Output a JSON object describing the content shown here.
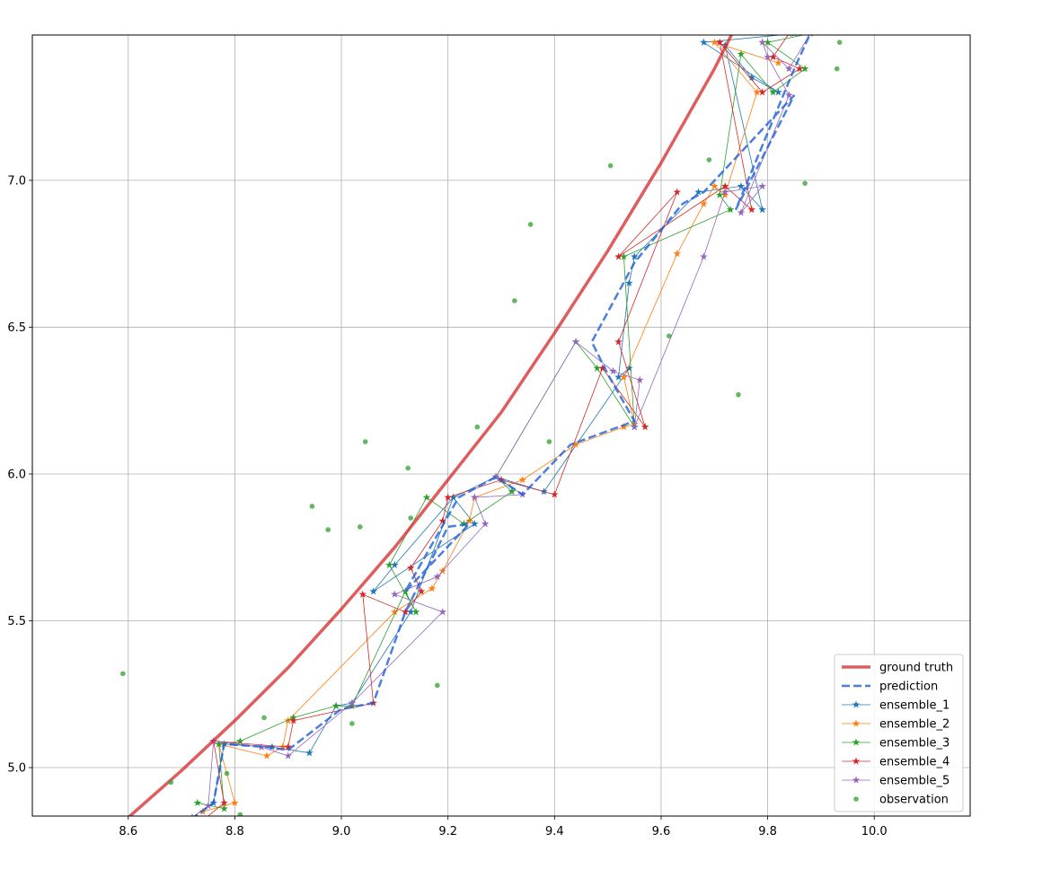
{
  "chart_data": {
    "type": "line",
    "title": "",
    "xlabel": "",
    "ylabel": "",
    "xlim": [
      8.42,
      10.18
    ],
    "ylim": [
      4.835,
      7.495
    ],
    "xticks": [
      8.6,
      8.8,
      9.0,
      9.2,
      9.4,
      9.6,
      9.8,
      10.0
    ],
    "xtick_labels": [
      "8.6",
      "8.8",
      "9.0",
      "9.2",
      "9.4",
      "9.6",
      "9.8",
      "10.0"
    ],
    "yticks": [
      5.0,
      5.5,
      6.0,
      6.5,
      7.0
    ],
    "ytick_labels": [
      "5.0",
      "5.5",
      "6.0",
      "6.5",
      "7.0"
    ],
    "grid": true,
    "legend_position": "lower-right",
    "colors": {
      "ground_truth": "#d62728",
      "prediction": "#1f5fd6",
      "ensemble_1": "#1f77b4",
      "ensemble_2": "#ff7f0e",
      "ensemble_3": "#2ca02c",
      "ensemble_4": "#d62728",
      "ensemble_5": "#9467bd",
      "observation": "#2ca02c"
    },
    "legend": [
      "ground truth",
      "prediction",
      "ensemble_1",
      "ensemble_2",
      "ensemble_3",
      "ensemble_4",
      "ensemble_5",
      "observation"
    ],
    "ground_truth": {
      "name": "ground truth",
      "x": [
        8.52,
        8.6,
        8.7,
        8.8,
        8.9,
        9.0,
        9.1,
        9.2,
        9.3,
        9.4,
        9.5,
        9.6,
        9.7,
        9.75
      ],
      "y": [
        4.7,
        4.83,
        4.99,
        5.16,
        5.34,
        5.54,
        5.75,
        5.98,
        6.21,
        6.48,
        6.76,
        7.06,
        7.38,
        7.56
      ]
    },
    "prediction": {
      "name": "prediction",
      "x": [
        8.7,
        8.76,
        8.78,
        8.86,
        8.9,
        9.0,
        9.06,
        9.12,
        9.2,
        9.24,
        9.12,
        9.22,
        9.29,
        9.34,
        9.43,
        9.55,
        9.5,
        9.47,
        9.55,
        9.64,
        9.68,
        9.85,
        9.74,
        9.85,
        9.88
      ],
      "x_note": "",
      "y": [
        4.8,
        4.88,
        5.08,
        5.07,
        5.06,
        5.2,
        5.22,
        5.53,
        5.82,
        5.83,
        5.6,
        5.92,
        5.99,
        5.93,
        6.1,
        6.18,
        6.34,
        6.45,
        6.72,
        6.92,
        6.96,
        7.29,
        6.9,
        7.38,
        7.5
      ]
    },
    "series": [
      {
        "name": "ensemble_1",
        "x": [
          8.72,
          8.76,
          8.78,
          8.87,
          8.94,
          8.99,
          9.02,
          9.13,
          9.21,
          9.25,
          9.06,
          9.1,
          9.21,
          9.29,
          9.38,
          9.54,
          9.52,
          9.54,
          9.55,
          9.67,
          9.75,
          9.79,
          9.72,
          9.77,
          9.82,
          9.68,
          9.85
        ],
        "y": [
          4.83,
          4.88,
          5.08,
          5.07,
          5.05,
          5.21,
          5.22,
          5.53,
          5.92,
          5.83,
          5.6,
          5.69,
          5.92,
          5.99,
          5.94,
          6.36,
          6.33,
          6.65,
          6.74,
          6.96,
          6.98,
          6.9,
          7.46,
          7.35,
          7.3,
          7.47,
          7.5
        ]
      },
      {
        "name": "ensemble_2",
        "x": [
          8.74,
          8.8,
          8.77,
          8.86,
          8.89,
          8.9,
          9.1,
          9.17,
          9.19,
          9.24,
          9.25,
          9.34,
          9.44,
          9.53,
          9.55,
          9.53,
          9.63,
          9.68,
          9.7,
          9.72,
          9.78,
          9.7,
          9.82
        ],
        "y": [
          4.85,
          4.88,
          5.08,
          5.04,
          5.07,
          5.16,
          5.53,
          5.61,
          5.67,
          5.84,
          5.92,
          5.98,
          6.1,
          6.16,
          6.17,
          6.33,
          6.75,
          6.92,
          6.98,
          6.95,
          7.3,
          7.47,
          7.4
        ]
      },
      {
        "name": "ensemble_3",
        "x": [
          8.73,
          8.78,
          8.77,
          8.81,
          8.91,
          8.99,
          9.02,
          9.12,
          9.14,
          9.09,
          9.16,
          9.23,
          9.32,
          9.29,
          9.44,
          9.48,
          9.55,
          9.53,
          9.73,
          9.71,
          9.75,
          9.81,
          9.87,
          9.8,
          9.88
        ],
        "y": [
          4.88,
          4.86,
          5.08,
          5.09,
          5.17,
          5.21,
          5.21,
          5.6,
          5.53,
          5.69,
          5.92,
          5.83,
          5.94,
          5.99,
          6.45,
          6.36,
          6.16,
          6.74,
          6.9,
          6.95,
          7.43,
          7.3,
          7.38,
          7.47,
          7.5
        ]
      },
      {
        "name": "ensemble_4",
        "x": [
          8.74,
          8.78,
          8.76,
          8.9,
          8.91,
          9.06,
          9.04,
          9.12,
          9.15,
          9.13,
          9.19,
          9.2,
          9.3,
          9.4,
          9.49,
          9.57,
          9.52,
          9.63,
          9.52,
          9.72,
          9.77,
          9.71,
          9.79,
          9.86,
          9.81,
          9.84
        ],
        "y": [
          4.82,
          4.88,
          5.09,
          5.07,
          5.16,
          5.22,
          5.59,
          5.53,
          5.6,
          5.68,
          5.84,
          5.92,
          5.98,
          5.93,
          6.36,
          6.16,
          6.45,
          6.96,
          6.74,
          6.98,
          6.9,
          7.47,
          7.3,
          7.38,
          7.42,
          7.5
        ]
      },
      {
        "name": "ensemble_5",
        "x": [
          8.72,
          8.75,
          8.76,
          8.85,
          8.9,
          9.02,
          9.19,
          9.1,
          9.18,
          9.27,
          9.25,
          9.34,
          9.29,
          9.44,
          9.51,
          9.56,
          9.55,
          9.68,
          9.72,
          9.79,
          9.75,
          9.84,
          9.8,
          9.79,
          9.84,
          9.88
        ],
        "y": [
          4.83,
          4.87,
          5.09,
          5.07,
          5.04,
          5.22,
          5.53,
          5.59,
          5.65,
          5.83,
          5.92,
          5.93,
          5.99,
          6.45,
          6.35,
          6.32,
          6.16,
          6.74,
          6.96,
          6.98,
          6.89,
          7.29,
          7.42,
          7.47,
          7.38,
          7.5
        ]
      }
    ],
    "observation": {
      "name": "observation",
      "x": [
        8.59,
        8.68,
        8.785,
        8.81,
        8.855,
        8.945,
        8.975,
        9.02,
        9.035,
        9.045,
        9.125,
        9.13,
        9.18,
        9.255,
        9.325,
        9.355,
        9.39,
        9.505,
        9.615,
        9.69,
        9.745,
        9.87,
        9.935,
        9.93
      ],
      "y": [
        5.32,
        4.95,
        4.98,
        4.84,
        5.17,
        5.89,
        5.81,
        5.15,
        5.82,
        6.11,
        6.02,
        5.85,
        5.28,
        6.16,
        6.59,
        6.85,
        6.11,
        7.05,
        6.47,
        7.07,
        6.27,
        6.99,
        7.47,
        7.38
      ]
    }
  }
}
